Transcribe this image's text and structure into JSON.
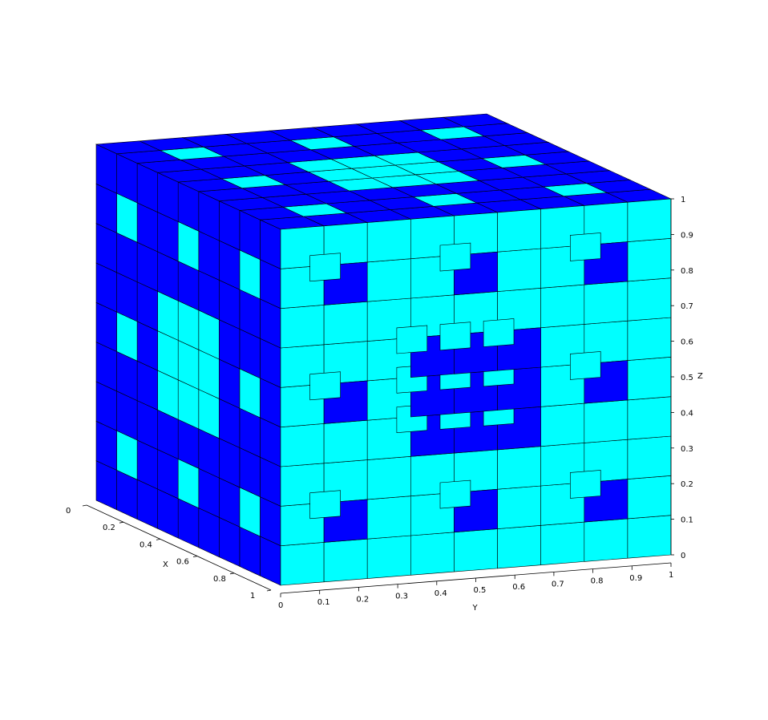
{
  "figure": {
    "background_color": "#ffffff",
    "top_color": "#0000ff",
    "left_color": "#0000ff",
    "front_color": "#00ffff",
    "edge_color": "#000000",
    "fractal_level": 2
  },
  "axes": {
    "x": {
      "label": "X",
      "ticks": [
        "0",
        "0.2",
        "0.4",
        "0.6",
        "0.8",
        "1"
      ]
    },
    "y": {
      "label": "Y",
      "ticks": [
        "0",
        "0.1",
        "0.2",
        "0.3",
        "0.4",
        "0.5",
        "0.6",
        "0.7",
        "0.8",
        "0.9",
        "1"
      ]
    },
    "z": {
      "label": "Z",
      "ticks": [
        "0",
        "0.1",
        "0.2",
        "0.3",
        "0.4",
        "0.5",
        "0.6",
        "0.7",
        "0.8",
        "0.9",
        "1"
      ]
    }
  }
}
